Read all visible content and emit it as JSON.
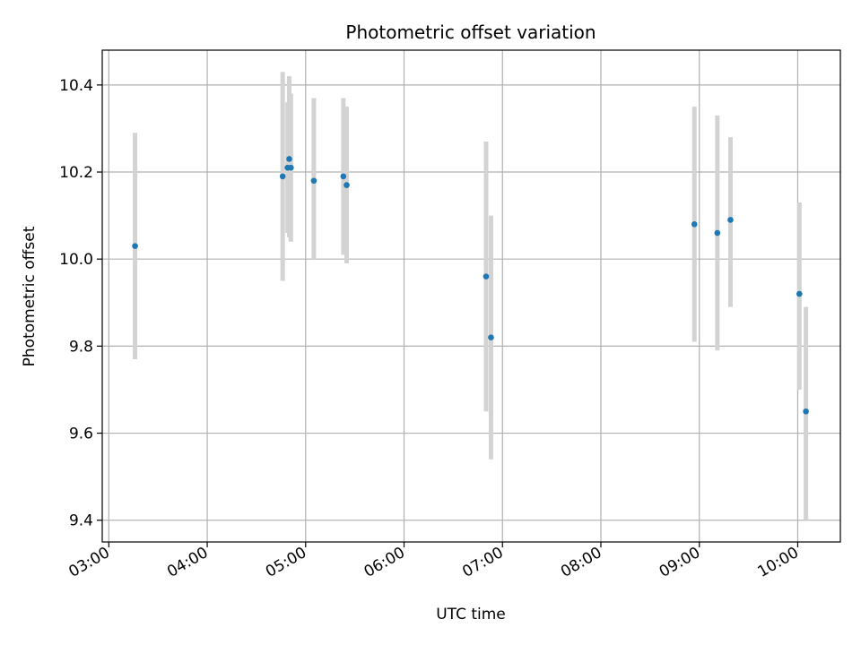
{
  "chart_data": {
    "type": "scatter",
    "title": "Photometric offset variation",
    "xlabel": "UTC time",
    "ylabel": "Photometric offset",
    "x_unit": "UTC time (HH:MM)",
    "xlim": [
      "02:56",
      "10:26"
    ],
    "ylim": [
      9.35,
      10.48
    ],
    "x_ticks": [
      "03:00",
      "04:00",
      "05:00",
      "06:00",
      "07:00",
      "08:00",
      "09:00",
      "10:00"
    ],
    "y_ticks": [
      "9.4",
      "9.6",
      "9.8",
      "10.0",
      "10.2",
      "10.4"
    ],
    "grid": true,
    "colors": {
      "point": "#1f77b4",
      "errorbar": "#d3d3d3",
      "grid": "#b0b0b0"
    },
    "points": [
      {
        "time": "03:16",
        "y": 10.03,
        "ylow": 9.77,
        "yhigh": 10.29
      },
      {
        "time": "04:46",
        "y": 10.19,
        "ylow": 9.95,
        "yhigh": 10.43
      },
      {
        "time": "04:49",
        "y": 10.21,
        "ylow": 10.06,
        "yhigh": 10.36
      },
      {
        "time": "04:50",
        "y": 10.23,
        "ylow": 10.05,
        "yhigh": 10.42
      },
      {
        "time": "04:51",
        "y": 10.21,
        "ylow": 10.04,
        "yhigh": 10.38
      },
      {
        "time": "05:05",
        "y": 10.18,
        "ylow": 10.0,
        "yhigh": 10.37
      },
      {
        "time": "05:23",
        "y": 10.19,
        "ylow": 10.01,
        "yhigh": 10.37
      },
      {
        "time": "05:25",
        "y": 10.17,
        "ylow": 9.99,
        "yhigh": 10.35
      },
      {
        "time": "06:50",
        "y": 9.96,
        "ylow": 9.65,
        "yhigh": 10.27
      },
      {
        "time": "06:53",
        "y": 9.82,
        "ylow": 9.54,
        "yhigh": 10.1
      },
      {
        "time": "08:57",
        "y": 10.08,
        "ylow": 9.81,
        "yhigh": 10.35
      },
      {
        "time": "09:11",
        "y": 10.06,
        "ylow": 9.79,
        "yhigh": 10.33
      },
      {
        "time": "09:19",
        "y": 10.09,
        "ylow": 9.89,
        "yhigh": 10.28
      },
      {
        "time": "10:01",
        "y": 9.92,
        "ylow": 9.7,
        "yhigh": 10.13
      },
      {
        "time": "10:05",
        "y": 9.65,
        "ylow": 9.4,
        "yhigh": 9.89
      }
    ]
  }
}
